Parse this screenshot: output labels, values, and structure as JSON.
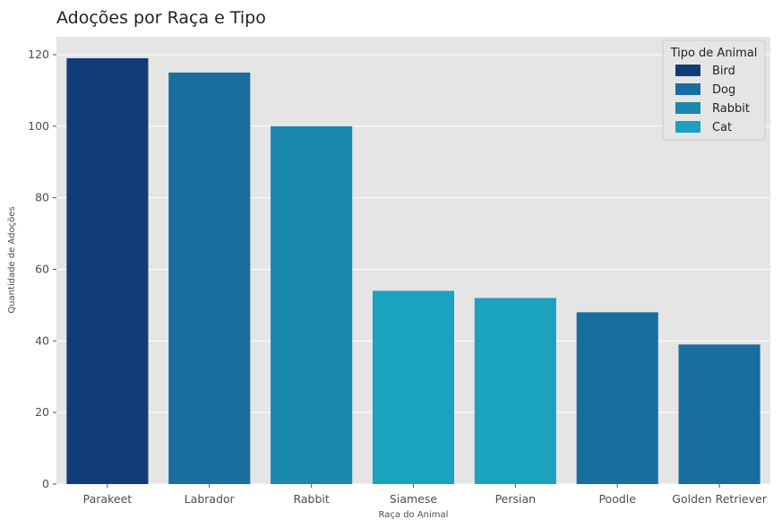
{
  "chart_data": {
    "type": "bar",
    "title": "Adoções por Raça e Tipo",
    "xlabel": "Raça do Animal",
    "ylabel": "Quantidade de Adoções",
    "categories": [
      "Parakeet",
      "Labrador",
      "Rabbit",
      "Siamese",
      "Persian",
      "Poodle",
      "Golden Retriever"
    ],
    "values": [
      119,
      115,
      100,
      54,
      52,
      48,
      39
    ],
    "bar_types": [
      "Bird",
      "Dog",
      "Rabbit",
      "Cat",
      "Cat",
      "Dog",
      "Dog"
    ],
    "ylim": [
      0,
      125
    ],
    "yticks": [
      0,
      20,
      40,
      60,
      80,
      100,
      120
    ],
    "grid": true,
    "legend": {
      "title": "Tipo de Animal",
      "position": "top-right",
      "entries": [
        {
          "label": "Bird",
          "color": "#123c78"
        },
        {
          "label": "Dog",
          "color": "#176e9f"
        },
        {
          "label": "Rabbit",
          "color": "#1a87ad"
        },
        {
          "label": "Cat",
          "color": "#1ba2bf"
        }
      ]
    },
    "colors": {
      "Bird": "#123c78",
      "Dog": "#176e9f",
      "Rabbit": "#1a87ad",
      "Cat": "#1ba2bf",
      "plot_background": "#e5e5e5",
      "grid": "#ffffff"
    }
  }
}
